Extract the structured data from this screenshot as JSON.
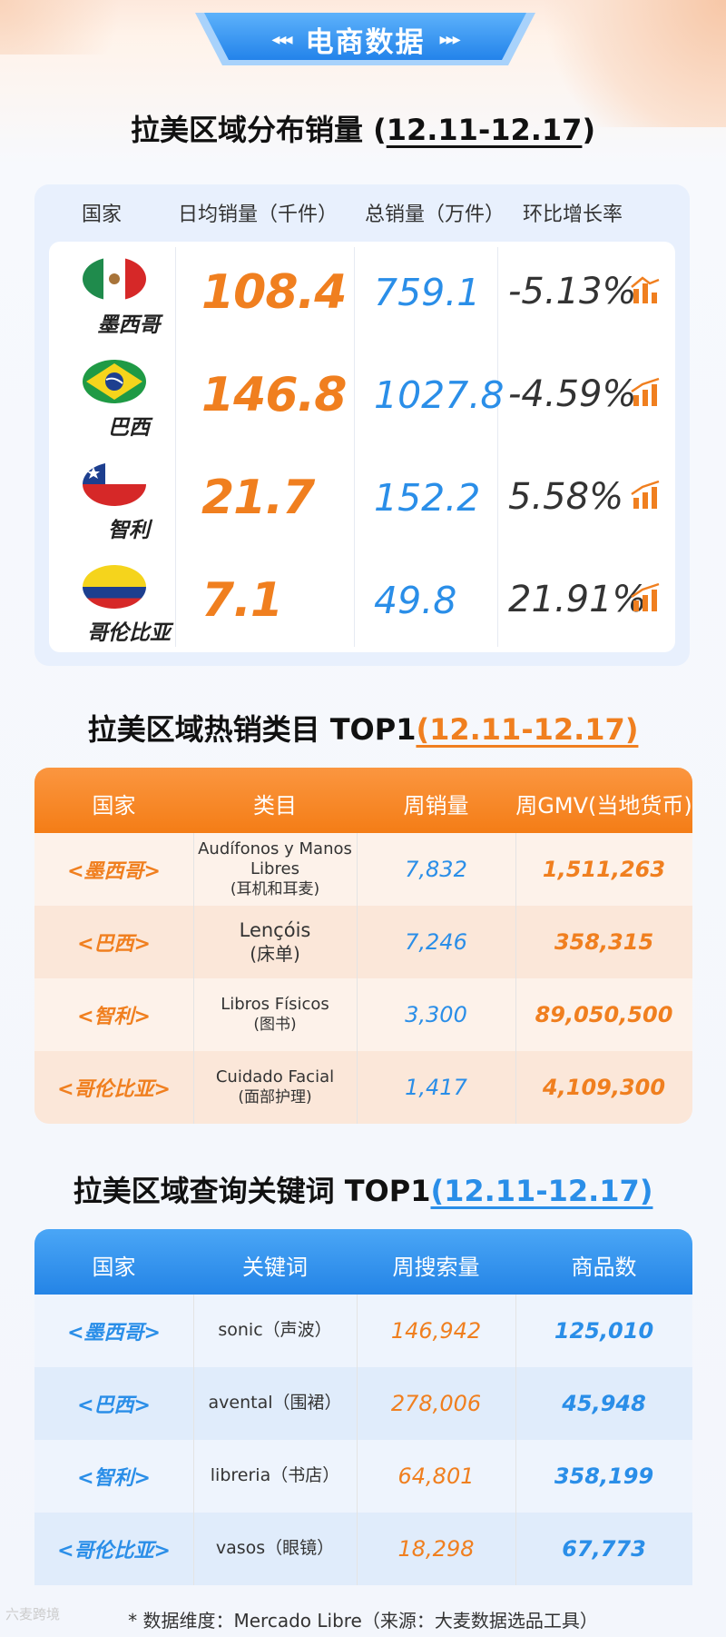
{
  "header": {
    "title": "电商数据",
    "arrows_left": "◂◂◂",
    "arrows_right": "▸▸▸"
  },
  "section1": {
    "title": "拉美区域分布销量 (",
    "date_range": "12.11-12.17",
    "close_paren": ")",
    "columns": [
      "国家",
      "日均销量（千件）",
      "总销量（万件）",
      "环比增长率"
    ],
    "rows": [
      {
        "country": "墨西哥",
        "flag": "mexico-flag",
        "daily": "108.4",
        "total": "759.1",
        "growth": "-5.13%"
      },
      {
        "country": "巴西",
        "flag": "brazil-flag",
        "daily": "146.8",
        "total": "1027.8",
        "growth": "-4.59%"
      },
      {
        "country": "智利",
        "flag": "chile-flag",
        "daily": "21.7",
        "total": "152.2",
        "growth": "5.58%"
      },
      {
        "country": "哥伦比亚",
        "flag": "colombia-flag",
        "daily": "7.1",
        "total": "49.8",
        "growth": "21.91%"
      }
    ]
  },
  "section2": {
    "title": "拉美区域热销类目 TOP1",
    "date_range": "(12.11-12.17)",
    "columns": [
      "国家",
      "类目",
      "周销量",
      "周GMV(当地货币)"
    ],
    "rows": [
      {
        "country": "<墨西哥>",
        "category": "Audífonos y Manos Libres",
        "category_cn": "(耳机和耳麦)",
        "sales": "7,832",
        "gmv": "1,511,263"
      },
      {
        "country": "<巴西>",
        "category": "Lençóis",
        "category_cn": "(床单)",
        "sales": "7,246",
        "gmv": "358,315"
      },
      {
        "country": "<智利>",
        "category": "Libros Físicos",
        "category_cn": "(图书)",
        "sales": "3,300",
        "gmv": "89,050,500"
      },
      {
        "country": "<哥伦比亚>",
        "category": "Cuidado Facial",
        "category_cn": "(面部护理)",
        "sales": "1,417",
        "gmv": "4,109,300"
      }
    ]
  },
  "section3": {
    "title": "拉美区域查询关键词 TOP1",
    "date_range": "(12.11-12.17)",
    "columns": [
      "国家",
      "关键词",
      "周搜索量",
      "商品数"
    ],
    "rows": [
      {
        "country": "<墨西哥>",
        "keyword": "sonic（声波）",
        "searches": "146,942",
        "products": "125,010"
      },
      {
        "country": "<巴西>",
        "keyword": "avental（围裙）",
        "searches": "278,006",
        "products": "45,948"
      },
      {
        "country": "<智利>",
        "keyword": "libreria（书店）",
        "searches": "64,801",
        "products": "358,199"
      },
      {
        "country": "<哥伦比亚>",
        "keyword": "vasos（眼镜）",
        "searches": "18,298",
        "products": "67,773"
      }
    ]
  },
  "footnote": "* 数据维度：Mercado Libre（来源：大麦数据选品工具）",
  "watermark": "六麦跨境",
  "colors": {
    "orange": "#f07f1f",
    "blue": "#2a8ee8"
  }
}
